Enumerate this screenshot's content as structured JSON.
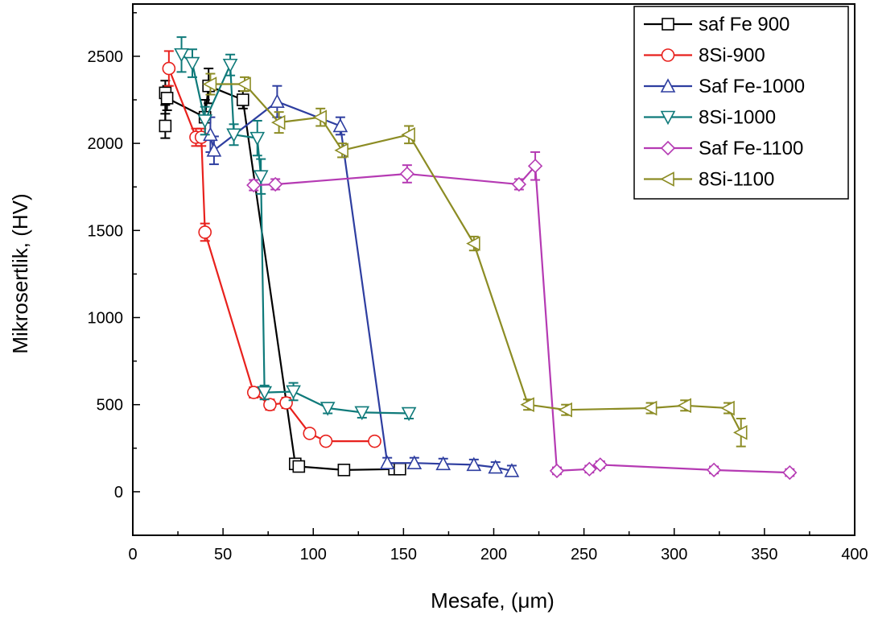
{
  "chart_data": {
    "type": "line",
    "xlabel": "Mesafe, (μm)",
    "ylabel": "Mikrosertlik, (HV)",
    "xlim": [
      0,
      400
    ],
    "ylim": [
      -250,
      2800
    ],
    "xticks": [
      0,
      50,
      100,
      150,
      200,
      250,
      300,
      350,
      400
    ],
    "yticks": [
      0,
      500,
      1000,
      1500,
      2000,
      2500
    ],
    "grid": false,
    "legend_position": "top-right",
    "series": [
      {
        "name": "saf Fe 900",
        "color": "#000000",
        "marker": "square",
        "x": [
          18,
          18,
          19,
          40,
          42,
          61,
          90,
          92,
          117,
          145,
          148
        ],
        "y": [
          2100,
          2290,
          2260,
          2150,
          2330,
          2250,
          160,
          145,
          125,
          130,
          130
        ],
        "err": [
          70,
          70,
          70,
          100,
          100,
          50,
          30,
          30,
          20,
          20,
          20
        ]
      },
      {
        "name": "8Si-900",
        "color": "#e8211d",
        "marker": "circle",
        "x": [
          20,
          35,
          38,
          40,
          67,
          76,
          85,
          98,
          107,
          134
        ],
        "y": [
          2430,
          2035,
          2035,
          1490,
          570,
          500,
          510,
          335,
          290,
          290
        ],
        "err": [
          100,
          50,
          50,
          50,
          30,
          30,
          30,
          20,
          20,
          20
        ]
      },
      {
        "name": "Saf Fe-1000",
        "color": "#2e3ea0",
        "marker": "triangle-up",
        "x": [
          43,
          45,
          80,
          115,
          141,
          156,
          172,
          189,
          201,
          210
        ],
        "y": [
          2050,
          1960,
          2240,
          2100,
          165,
          165,
          160,
          155,
          140,
          120
        ],
        "err": [
          100,
          80,
          90,
          50,
          30,
          30,
          30,
          30,
          30,
          30
        ]
      },
      {
        "name": "8Si-1000",
        "color": "#0f7a7a",
        "marker": "triangle-down",
        "x": [
          27,
          33,
          40,
          54,
          56,
          69,
          71,
          73,
          89,
          108,
          127,
          153
        ],
        "y": [
          2510,
          2460,
          2130,
          2450,
          2050,
          2030,
          1810,
          570,
          575,
          480,
          455,
          450
        ],
        "err": [
          100,
          80,
          80,
          60,
          60,
          100,
          100,
          40,
          50,
          30,
          30,
          30
        ]
      },
      {
        "name": "Saf Fe-1100",
        "color": "#b53ab3",
        "marker": "diamond",
        "x": [
          67,
          79,
          152,
          214,
          223,
          235,
          253,
          259,
          322,
          364
        ],
        "y": [
          1760,
          1765,
          1825,
          1765,
          1870,
          120,
          130,
          155,
          125,
          110
        ],
        "err": [
          30,
          30,
          50,
          30,
          80,
          20,
          20,
          20,
          20,
          20
        ]
      },
      {
        "name": "8Si-1100",
        "color": "#8c8c24",
        "marker": "triangle-left",
        "x": [
          43,
          62,
          81,
          104,
          116,
          153,
          189,
          219,
          240,
          287,
          306,
          330,
          337
        ],
        "y": [
          2340,
          2340,
          2120,
          2150,
          1960,
          2050,
          1425,
          500,
          470,
          480,
          495,
          480,
          340
        ],
        "err": [
          60,
          40,
          60,
          50,
          40,
          50,
          40,
          30,
          30,
          30,
          30,
          30,
          80
        ]
      }
    ]
  }
}
